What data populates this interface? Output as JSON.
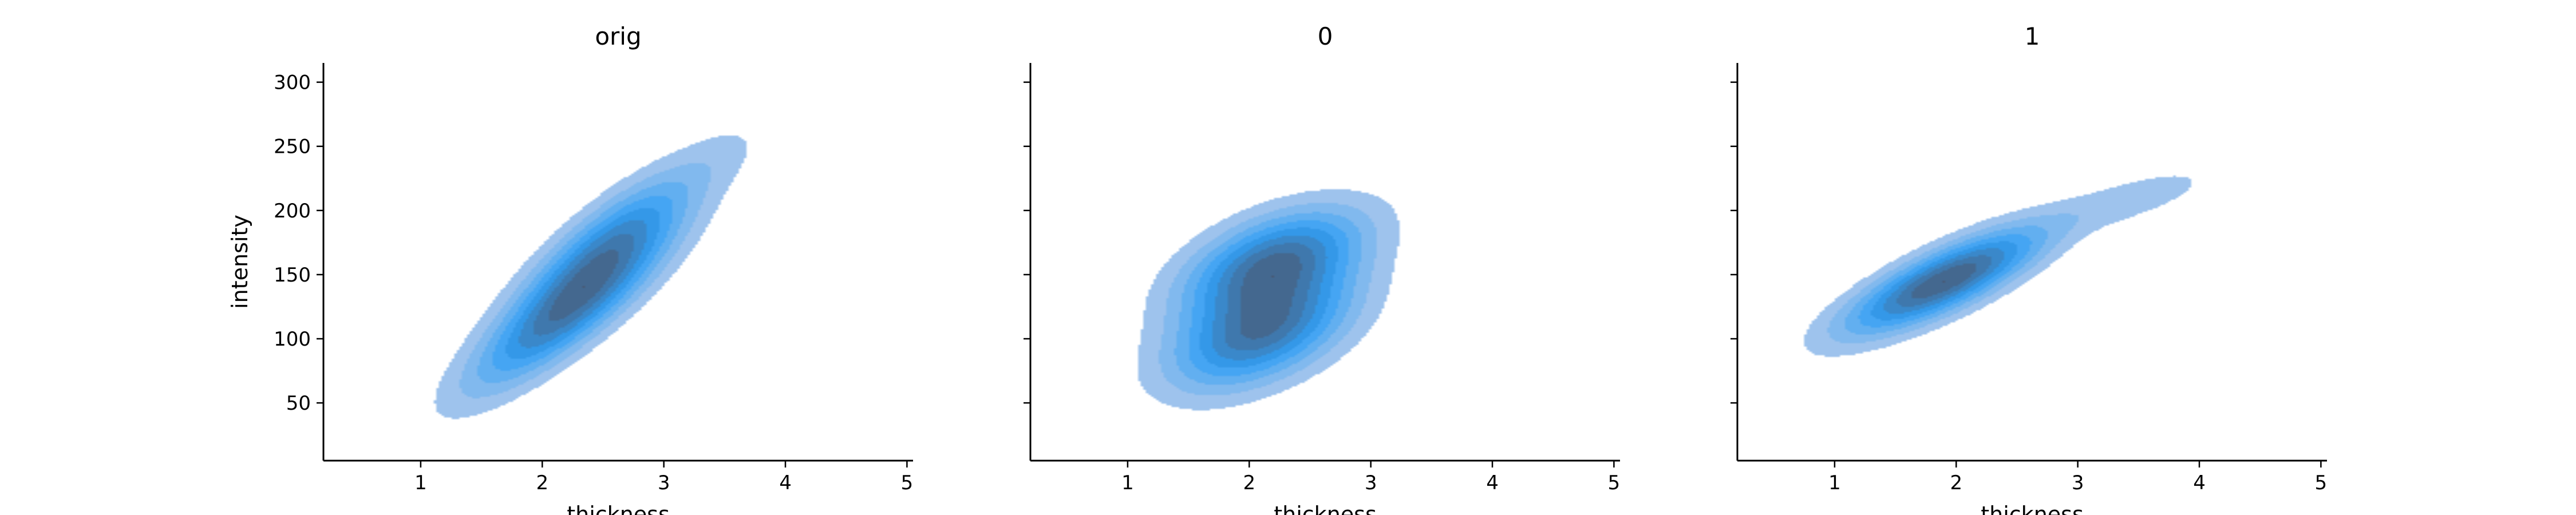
{
  "chart_data": [
    {
      "type": "kde2d",
      "title": "orig",
      "xlabel": "thickness",
      "ylabel": "intensity",
      "xlim": [
        0.2,
        5.05
      ],
      "ylim": [
        5,
        315
      ],
      "xticks": [
        1,
        2,
        3,
        4,
        5
      ],
      "yticks": [
        50,
        100,
        150,
        200,
        250,
        300
      ],
      "fill_color": "#2196f3",
      "levels": 9,
      "components": [
        {
          "mx": 2.2,
          "my": 120,
          "sx": 0.55,
          "sy": 42,
          "rho": 0.85,
          "w": 0.55
        },
        {
          "mx": 2.55,
          "my": 175,
          "sx": 0.5,
          "sy": 40,
          "rho": 0.82,
          "w": 0.45
        },
        {
          "mx": 3.55,
          "my": 245,
          "sx": 0.25,
          "sy": 20,
          "rho": 0.5,
          "w": 0.05
        }
      ]
    },
    {
      "type": "kde2d",
      "title": "0",
      "xlabel": "thickness",
      "ylabel": "",
      "xlim": [
        0.2,
        5.05
      ],
      "ylim": [
        5,
        315
      ],
      "xticks": [
        1,
        2,
        3,
        4,
        5
      ],
      "yticks": [
        50,
        100,
        150,
        200,
        250,
        300
      ],
      "fill_color": "#2196f3",
      "levels": 9,
      "components": [
        {
          "mx": 2.1,
          "my": 105,
          "sx": 0.5,
          "sy": 30,
          "rho": 0.5,
          "w": 0.5
        },
        {
          "mx": 2.2,
          "my": 160,
          "sx": 0.5,
          "sy": 28,
          "rho": 0.5,
          "w": 0.5
        },
        {
          "mx": 3.6,
          "my": 245,
          "sx": 0.25,
          "sy": 18,
          "rho": 0.5,
          "w": 0.05
        }
      ]
    },
    {
      "type": "kde2d",
      "title": "1",
      "xlabel": "thickness",
      "ylabel": "",
      "xlim": [
        0.2,
        5.05
      ],
      "ylim": [
        5,
        315
      ],
      "xticks": [
        1,
        2,
        3,
        4,
        5
      ],
      "yticks": [
        50,
        100,
        150,
        200,
        250,
        300
      ],
      "fill_color": "#2196f3",
      "levels": 9,
      "components": [
        {
          "mx": 1.9,
          "my": 145,
          "sx": 0.55,
          "sy": 28,
          "rho": 0.8,
          "w": 0.85
        },
        {
          "mx": 3.5,
          "my": 210,
          "sx": 0.45,
          "sy": 17,
          "rho": 0.7,
          "w": 0.15
        }
      ]
    }
  ]
}
